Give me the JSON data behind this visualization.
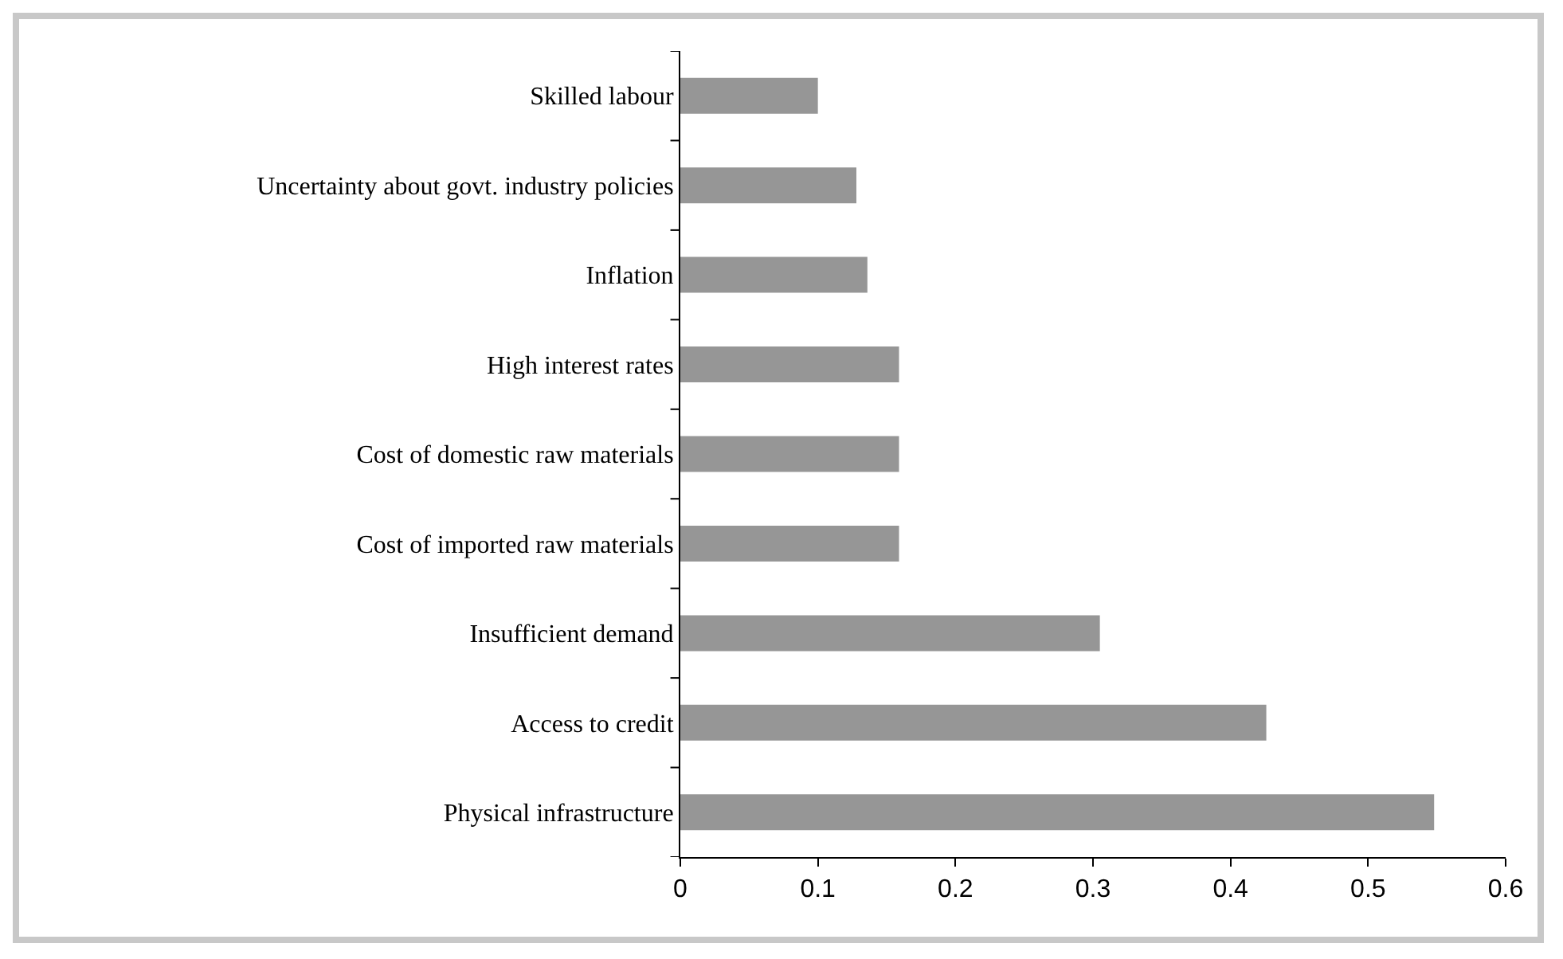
{
  "chart_data": {
    "type": "bar",
    "orientation": "horizontal",
    "categories": [
      "Skilled labour",
      "Uncertainty about govt. industry policies",
      "Inflation",
      "High interest rates",
      "Cost of domestic raw materials",
      "Cost of imported raw materials",
      "Insufficient demand",
      "Access to credit",
      "Physical infrastructure"
    ],
    "values": [
      0.1,
      0.128,
      0.136,
      0.159,
      0.159,
      0.159,
      0.305,
      0.426,
      0.548
    ],
    "color": "#969696",
    "xlim": [
      0,
      0.6
    ],
    "xticks": [
      0,
      0.1,
      0.2,
      0.3,
      0.4,
      0.5,
      0.6
    ],
    "grid": false,
    "legend": false
  }
}
